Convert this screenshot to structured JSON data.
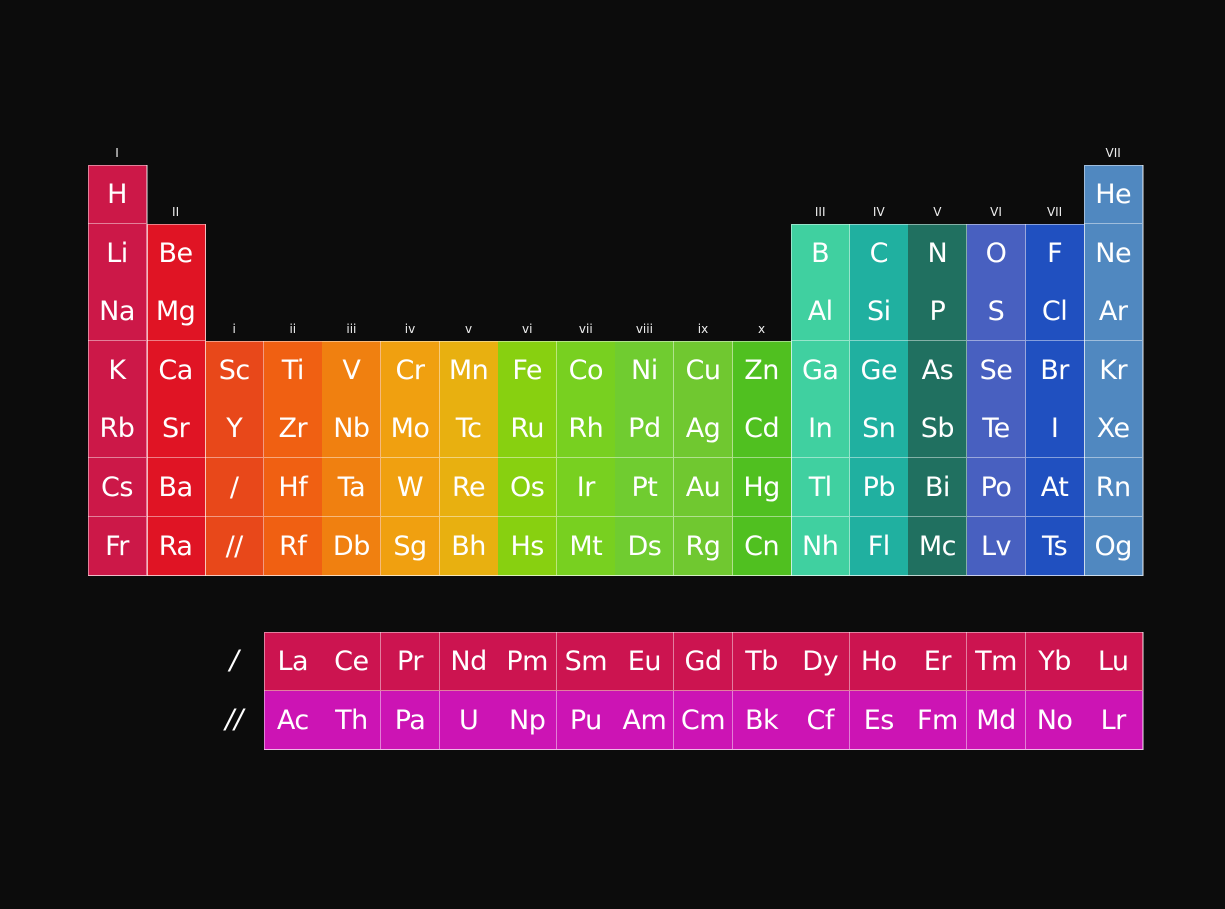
{
  "group_labels": [
    "I",
    "II",
    "i",
    "ii",
    "iii",
    "iv",
    "v",
    "vi",
    "vii",
    "viii",
    "ix",
    "x",
    "III",
    "IV",
    "V",
    "VI",
    "VII",
    "VII"
  ],
  "series_markers": [
    "/",
    "//"
  ],
  "rows": [
    [
      "H",
      "",
      "",
      "",
      "",
      "",
      "",
      "",
      "",
      "",
      "",
      "",
      "",
      "",
      "",
      "",
      "",
      "He"
    ],
    [
      "Li",
      "Be",
      "",
      "",
      "",
      "",
      "",
      "",
      "",
      "",
      "",
      "",
      "B",
      "C",
      "N",
      "O",
      "F",
      "Ne"
    ],
    [
      "Na",
      "Mg",
      "",
      "",
      "",
      "",
      "",
      "",
      "",
      "",
      "",
      "",
      "Al",
      "Si",
      "P",
      "S",
      "Cl",
      "Ar"
    ],
    [
      "K",
      "Ca",
      "Sc",
      "Ti",
      "V",
      "Cr",
      "Mn",
      "Fe",
      "Co",
      "Ni",
      "Cu",
      "Zn",
      "Ga",
      "Ge",
      "As",
      "Se",
      "Br",
      "Kr"
    ],
    [
      "Rb",
      "Sr",
      "Y",
      "Zr",
      "Nb",
      "Mo",
      "Tc",
      "Ru",
      "Rh",
      "Pd",
      "Ag",
      "Cd",
      "In",
      "Sn",
      "Sb",
      "Te",
      "I",
      "Xe"
    ],
    [
      "Cs",
      "Ba",
      "/",
      "Hf",
      "Ta",
      "W",
      "Re",
      "Os",
      "Ir",
      "Pt",
      "Au",
      "Hg",
      "Tl",
      "Pb",
      "Bi",
      "Po",
      "At",
      "Rn"
    ],
    [
      "Fr",
      "Ra",
      "//",
      "Rf",
      "Db",
      "Sg",
      "Bh",
      "Hs",
      "Mt",
      "Ds",
      "Rg",
      "Cn",
      "Nh",
      "Fl",
      "Mc",
      "Lv",
      "Ts",
      "Og"
    ]
  ],
  "lanthanides": [
    "La",
    "Ce",
    "Pr",
    "Nd",
    "Pm",
    "Sm",
    "Eu",
    "Gd",
    "Tb",
    "Dy",
    "Ho",
    "Er",
    "Tm",
    "Yb",
    "Lu"
  ],
  "actinides": [
    "Ac",
    "Th",
    "Pa",
    "U",
    "Np",
    "Pu",
    "Am",
    "Cm",
    "Bk",
    "Cf",
    "Es",
    "Fm",
    "Md",
    "No",
    "Lr"
  ],
  "colors": {
    "background": "#0c0c0c",
    "columns": [
      "#cc1848",
      "#e01424",
      "#e8481a",
      "#f06012",
      "#f08010",
      "#f0a010",
      "#e8b010",
      "#88d010",
      "#78d020",
      "#70cc30",
      "#70c830",
      "#50c020",
      "#40d0a0",
      "#20b0a0",
      "#207060",
      "#4860c0",
      "#2050c0",
      "#5088c0"
    ],
    "lanthanides": "#cc1450",
    "actinides": "#cc14b4"
  }
}
